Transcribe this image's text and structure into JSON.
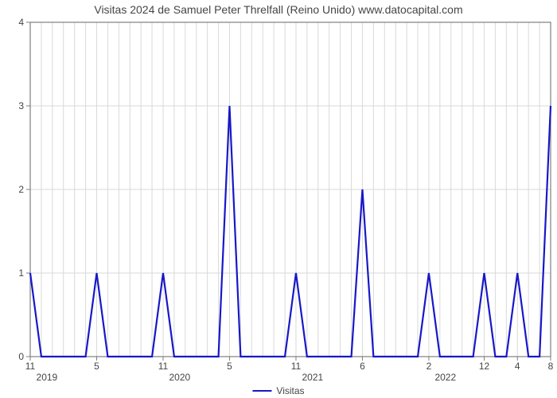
{
  "chart": {
    "type": "line",
    "title": "Visitas 2024 de Samuel Peter Threlfall (Reino Unido) www.datocapital.com",
    "title_fontsize": 14,
    "title_color": "#454545",
    "background_color": "#ffffff",
    "plot_border_color": "#7f7f7f",
    "grid_color": "#d9d9d9",
    "line_color": "#1818c8",
    "line_width": 2.2,
    "ylim": [
      0,
      4
    ],
    "yticks": [
      0,
      1,
      2,
      3,
      4
    ],
    "axis_font_size": 12,
    "axis_text_color": "#454545",
    "x_count": 48,
    "x_tick_labels_major": [
      {
        "index": 0,
        "label": "11"
      },
      {
        "index": 6,
        "label": "5"
      },
      {
        "index": 12,
        "label": "11"
      },
      {
        "index": 18,
        "label": "5"
      },
      {
        "index": 24,
        "label": "11"
      },
      {
        "index": 30,
        "label": "6"
      },
      {
        "index": 36,
        "label": "2"
      },
      {
        "index": 41,
        "label": "12"
      },
      {
        "index": 44,
        "label": "4"
      },
      {
        "index": 47,
        "label": "8"
      }
    ],
    "x_year_labels": [
      {
        "index": 1.5,
        "label": "2019"
      },
      {
        "index": 13.5,
        "label": "2020"
      },
      {
        "index": 25.5,
        "label": "2021"
      },
      {
        "index": 37.5,
        "label": "2022"
      }
    ],
    "y_values": [
      1,
      0,
      0,
      0,
      0,
      0,
      1,
      0,
      0,
      0,
      0,
      0,
      1,
      0,
      0,
      0,
      0,
      0,
      3,
      0,
      0,
      0,
      0,
      0,
      1,
      0,
      0,
      0,
      0,
      0,
      2,
      0,
      0,
      0,
      0,
      0,
      1,
      0,
      0,
      0,
      0,
      1,
      0,
      0,
      1,
      0,
      0,
      3
    ],
    "legend": {
      "label": "Visitas",
      "color": "#1818c8"
    }
  }
}
